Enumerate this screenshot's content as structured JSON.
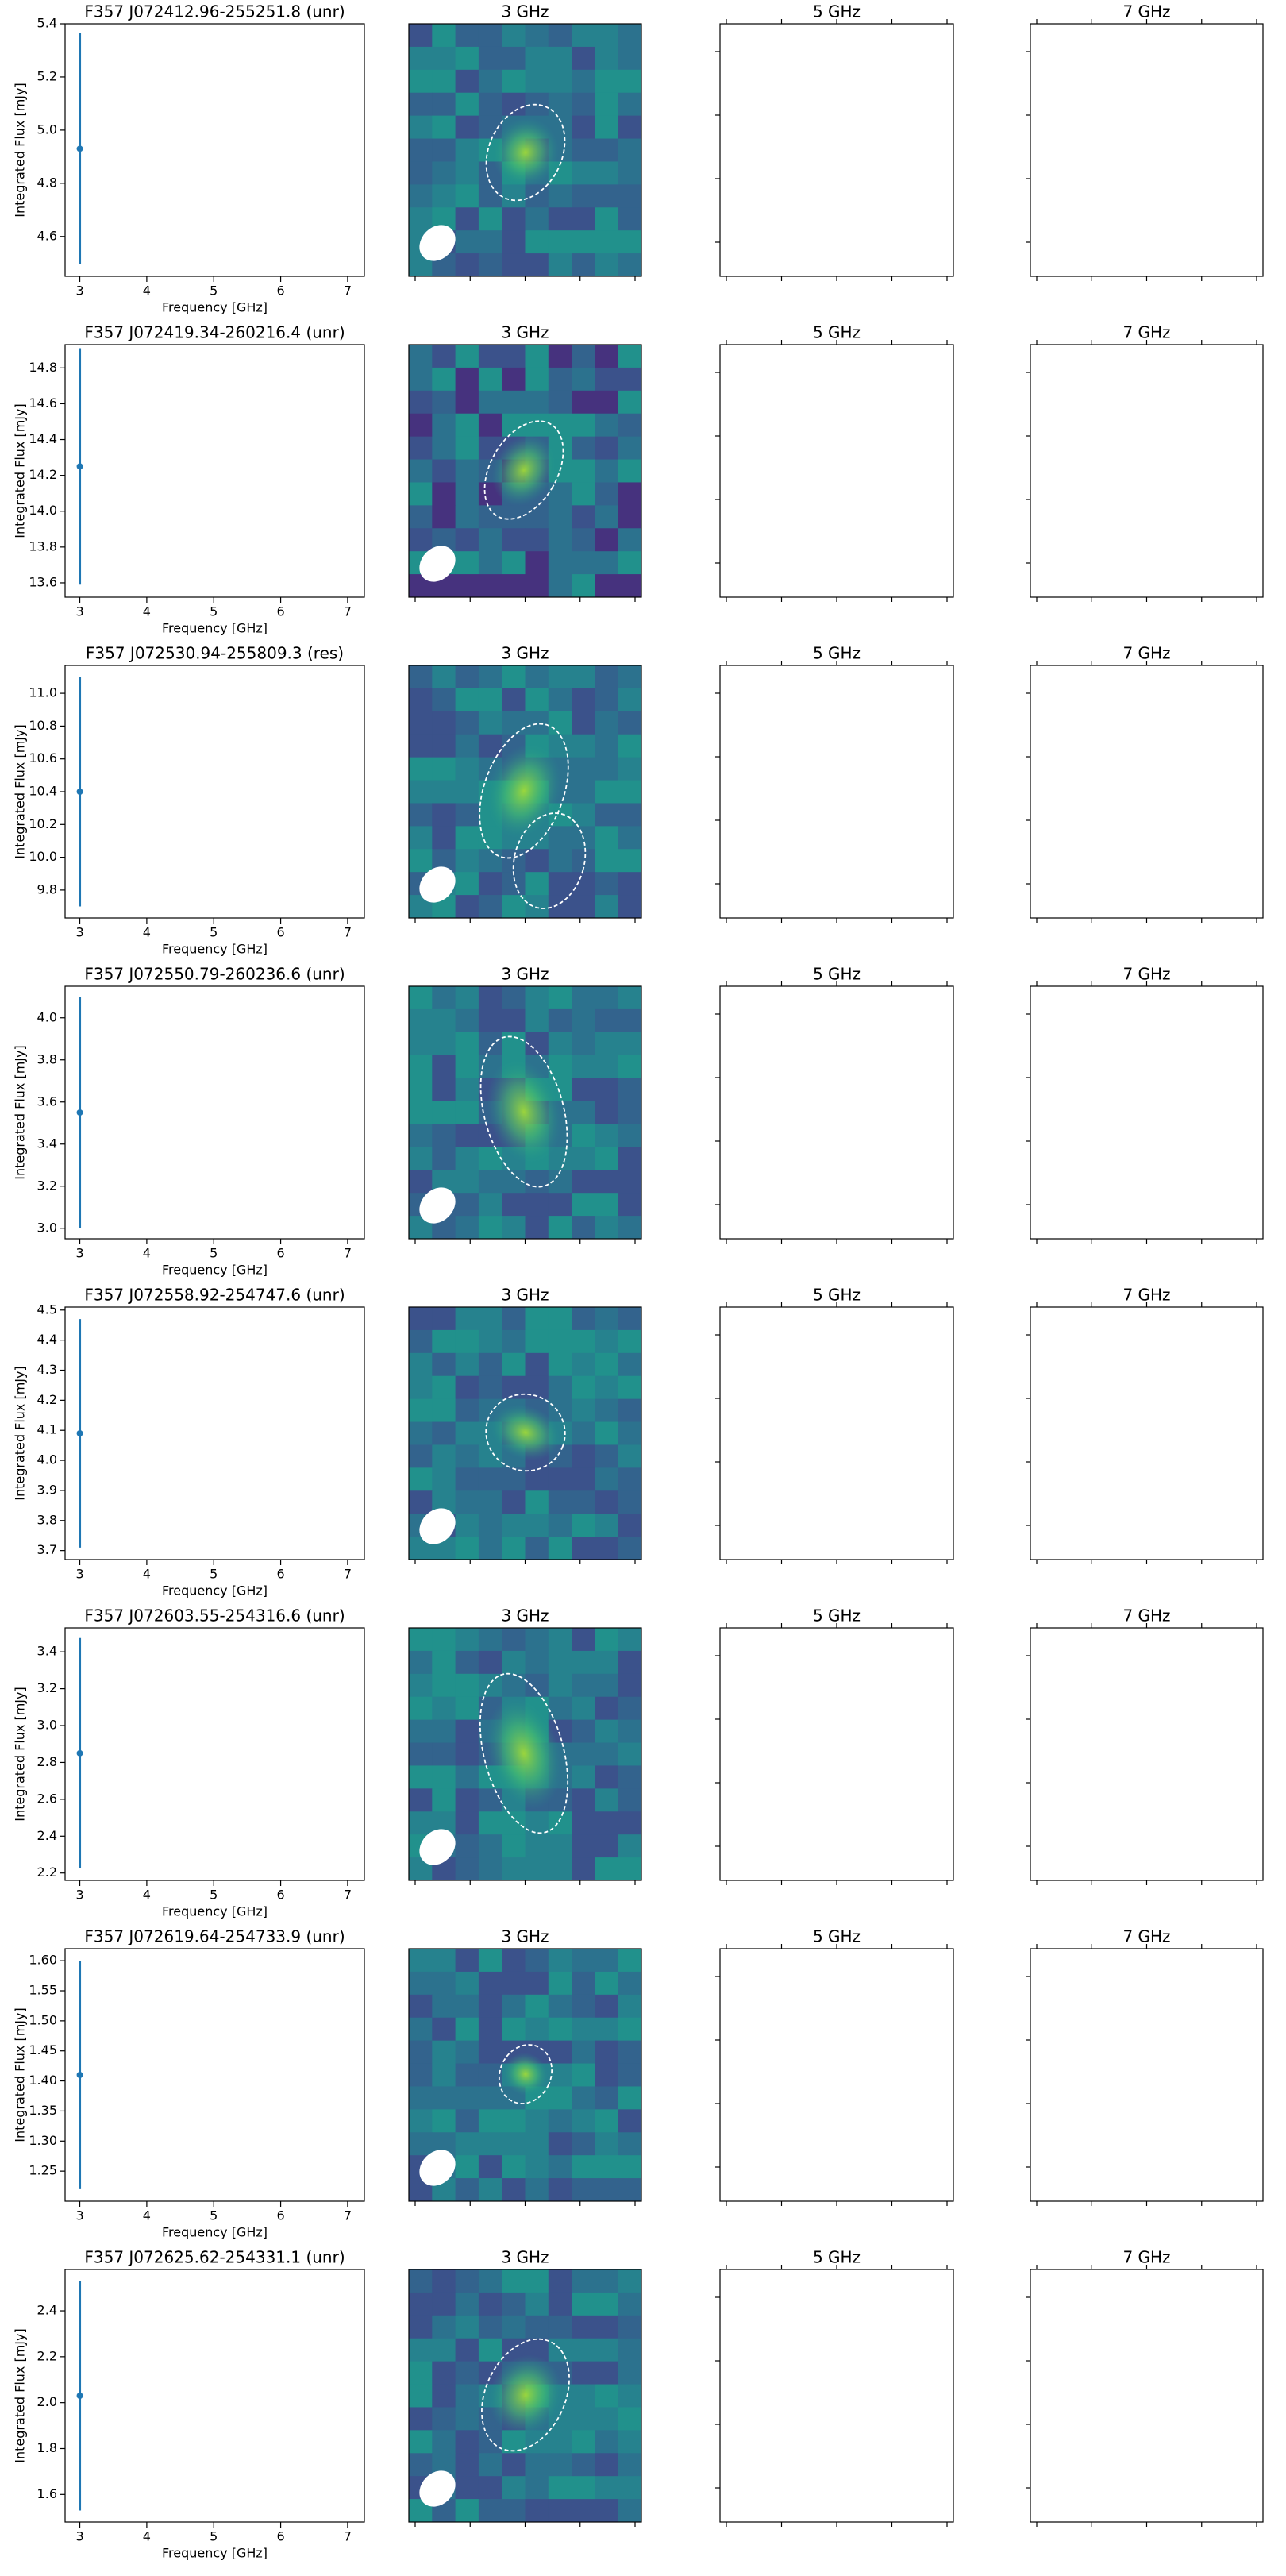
{
  "chart_data": [
    {
      "type": "scatter",
      "title": "F357 J072412.96-255251.8 (unr)",
      "x_label": "Frequency [GHz]",
      "y_label": "Integrated Flux [mJy]",
      "x": [
        3
      ],
      "values": [
        4.93
      ],
      "errors": [
        0.435
      ],
      "color": "#1f77b4",
      "xlim": [
        2.78,
        7.25
      ],
      "xticks": [
        3,
        4,
        5,
        6,
        7
      ],
      "ylim": [
        4.45,
        5.4
      ],
      "yticks": [
        4.6,
        4.8,
        {
          "value": 5,
          "label": "5.0"
        },
        5.2,
        5.4
      ]
    },
    {
      "type": "image",
      "title": "3 GHz"
    },
    {
      "type": "image",
      "title": "5 GHz"
    },
    {
      "type": "image",
      "title": "7 GHz"
    },
    {
      "type": "scatter",
      "title": "F357 J072419.34-260216.4 (unr)",
      "x_label": "Frequency [GHz]",
      "y_label": "Integrated Flux [mJy]",
      "x": [
        3
      ],
      "values": [
        14.25
      ],
      "errors": [
        0.66
      ],
      "color": "#1f77b4",
      "xlim": [
        2.78,
        7.25
      ],
      "xticks": [
        3,
        4,
        5,
        6,
        7
      ],
      "ylim": [
        13.52,
        14.93
      ],
      "yticks": [
        13.6,
        13.8,
        {
          "value": 14,
          "label": "14.0"
        },
        14.2,
        14.4,
        14.6,
        14.8
      ]
    },
    {
      "type": "image",
      "title": "3 GHz"
    },
    {
      "type": "image",
      "title": "5 GHz"
    },
    {
      "type": "image",
      "title": "7 GHz"
    },
    {
      "type": "scatter",
      "title": "F357 J072530.94-255809.3 (res)",
      "x_label": "Frequency [GHz]",
      "y_label": "Integrated Flux [mJy]",
      "x": [
        3
      ],
      "values": [
        10.4
      ],
      "errors": [
        0.7
      ],
      "color": "#1f77b4",
      "xlim": [
        2.78,
        7.25
      ],
      "xticks": [
        3,
        4,
        5,
        6,
        7
      ],
      "ylim": [
        9.63,
        11.17
      ],
      "yticks": [
        9.8,
        {
          "value": 10,
          "label": "10.0"
        },
        10.2,
        10.4,
        10.6,
        10.8,
        {
          "value": 11,
          "label": "11.0"
        }
      ]
    },
    {
      "type": "image",
      "title": "3 GHz"
    },
    {
      "type": "image",
      "title": "5 GHz"
    },
    {
      "type": "image",
      "title": "7 GHz"
    },
    {
      "type": "scatter",
      "title": "F357 J072550.79-260236.6 (unr)",
      "x_label": "Frequency [GHz]",
      "y_label": "Integrated Flux [mJy]",
      "x": [
        3
      ],
      "values": [
        3.55
      ],
      "errors": [
        0.55
      ],
      "color": "#1f77b4",
      "xlim": [
        2.78,
        7.25
      ],
      "xticks": [
        3,
        4,
        5,
        6,
        7
      ],
      "ylim": [
        2.95,
        4.15
      ],
      "yticks": [
        {
          "value": 3,
          "label": "3.0"
        },
        3.2,
        3.4,
        3.6,
        3.8,
        {
          "value": 4,
          "label": "4.0"
        }
      ]
    },
    {
      "type": "image",
      "title": "3 GHz"
    },
    {
      "type": "image",
      "title": "5 GHz"
    },
    {
      "type": "image",
      "title": "7 GHz"
    },
    {
      "type": "scatter",
      "title": "F357 J072558.92-254747.6 (unr)",
      "x_label": "Frequency [GHz]",
      "y_label": "Integrated Flux [mJy]",
      "x": [
        3
      ],
      "values": [
        4.09
      ],
      "errors": [
        0.38
      ],
      "color": "#1f77b4",
      "xlim": [
        2.78,
        7.25
      ],
      "xticks": [
        3,
        4,
        5,
        6,
        7
      ],
      "ylim": [
        3.67,
        4.51
      ],
      "yticks": [
        3.7,
        3.8,
        3.9,
        {
          "value": 4,
          "label": "4.0"
        },
        4.1,
        4.2,
        4.3,
        4.4,
        4.5
      ]
    },
    {
      "type": "image",
      "title": "3 GHz"
    },
    {
      "type": "image",
      "title": "5 GHz"
    },
    {
      "type": "image",
      "title": "7 GHz"
    },
    {
      "type": "scatter",
      "title": "F357 J072603.55-254316.6 (unr)",
      "x_label": "Frequency [GHz]",
      "y_label": "Integrated Flux [mJy]",
      "x": [
        3
      ],
      "values": [
        2.85
      ],
      "errors": [
        0.625
      ],
      "color": "#1f77b4",
      "xlim": [
        2.78,
        7.25
      ],
      "xticks": [
        3,
        4,
        5,
        6,
        7
      ],
      "ylim": [
        2.16,
        3.53
      ],
      "yticks": [
        2.2,
        2.4,
        2.6,
        2.8,
        {
          "value": 3,
          "label": "3.0"
        },
        3.2,
        3.4
      ]
    },
    {
      "type": "image",
      "title": "3 GHz"
    },
    {
      "type": "image",
      "title": "5 GHz"
    },
    {
      "type": "image",
      "title": "7 GHz"
    },
    {
      "type": "scatter",
      "title": "F357 J072619.64-254733.9 (unr)",
      "x_label": "Frequency [GHz]",
      "y_label": "Integrated Flux [mJy]",
      "x": [
        3
      ],
      "values": [
        1.41
      ],
      "errors": [
        0.19
      ],
      "color": "#1f77b4",
      "xlim": [
        2.78,
        7.25
      ],
      "xticks": [
        3,
        4,
        5,
        6,
        7
      ],
      "ylim": [
        1.2,
        1.62
      ],
      "yticks": [
        1.25,
        {
          "value": 1.3,
          "label": "1.30"
        },
        1.35,
        {
          "value": 1.4,
          "label": "1.40"
        },
        1.45,
        {
          "value": 1.5,
          "label": "1.50"
        },
        1.55,
        {
          "value": 1.6,
          "label": "1.60"
        }
      ]
    },
    {
      "type": "image",
      "title": "3 GHz"
    },
    {
      "type": "image",
      "title": "5 GHz"
    },
    {
      "type": "image",
      "title": "7 GHz"
    },
    {
      "type": "scatter",
      "title": "F357 J072625.62-254331.1 (unr)",
      "x_label": "Frequency [GHz]",
      "y_label": "Integrated Flux [mJy]",
      "x": [
        3
      ],
      "values": [
        2.03
      ],
      "errors": [
        0.5
      ],
      "color": "#1f77b4",
      "xlim": [
        2.78,
        7.25
      ],
      "xticks": [
        3,
        4,
        5,
        6,
        7
      ],
      "ylim": [
        1.48,
        2.58
      ],
      "yticks": [
        1.6,
        1.8,
        {
          "value": 2,
          "label": "2.0"
        },
        2.2,
        2.4
      ]
    },
    {
      "type": "image",
      "title": "3 GHz"
    },
    {
      "type": "image",
      "title": "5 GHz"
    },
    {
      "type": "image",
      "title": "7 GHz"
    }
  ]
}
